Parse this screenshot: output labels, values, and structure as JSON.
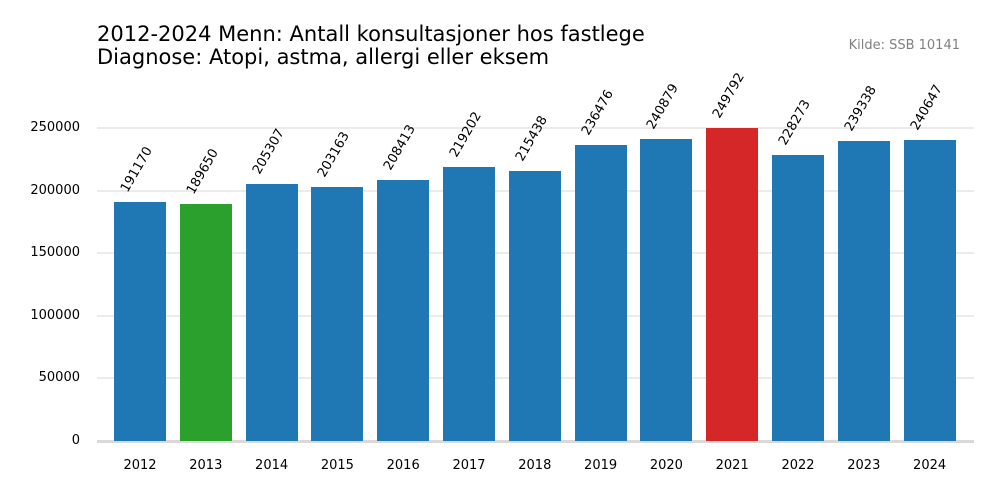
{
  "header": {
    "title_line1": "2012-2024 Menn: Antall konsultasjoner hos fastlege",
    "title_line2": "Diagnose: Atopi, astma, allergi eller eksem",
    "source": "Kilde: SSB 10141"
  },
  "colors": {
    "default_bar": "#1f77b4",
    "min_bar": "#2ca02c",
    "max_bar": "#d62728",
    "grid": "#ebebeb"
  },
  "chart_data": {
    "type": "bar",
    "title": "2012-2024 Menn: Antall konsultasjoner hos fastlege\nDiagnose: Atopi, astma, allergi eller eksem",
    "subtitle": "Kilde: SSB 10141",
    "xlabel": "",
    "ylabel": "",
    "categories": [
      "2012",
      "2013",
      "2014",
      "2015",
      "2016",
      "2017",
      "2018",
      "2019",
      "2020",
      "2021",
      "2022",
      "2023",
      "2024"
    ],
    "values": [
      191170,
      189650,
      205307,
      203163,
      208413,
      219202,
      215438,
      236476,
      240879,
      249792,
      228273,
      239338,
      240647
    ],
    "bar_colors": [
      "#1f77b4",
      "#2ca02c",
      "#1f77b4",
      "#1f77b4",
      "#1f77b4",
      "#1f77b4",
      "#1f77b4",
      "#1f77b4",
      "#1f77b4",
      "#d62728",
      "#1f77b4",
      "#1f77b4",
      "#1f77b4"
    ],
    "highlight": {
      "min": "2013",
      "max": "2021"
    },
    "yticks": [
      0,
      50000,
      100000,
      150000,
      200000,
      250000
    ],
    "ylim": [
      0,
      250000
    ],
    "grid": true,
    "data_labels": true,
    "legend": null
  }
}
